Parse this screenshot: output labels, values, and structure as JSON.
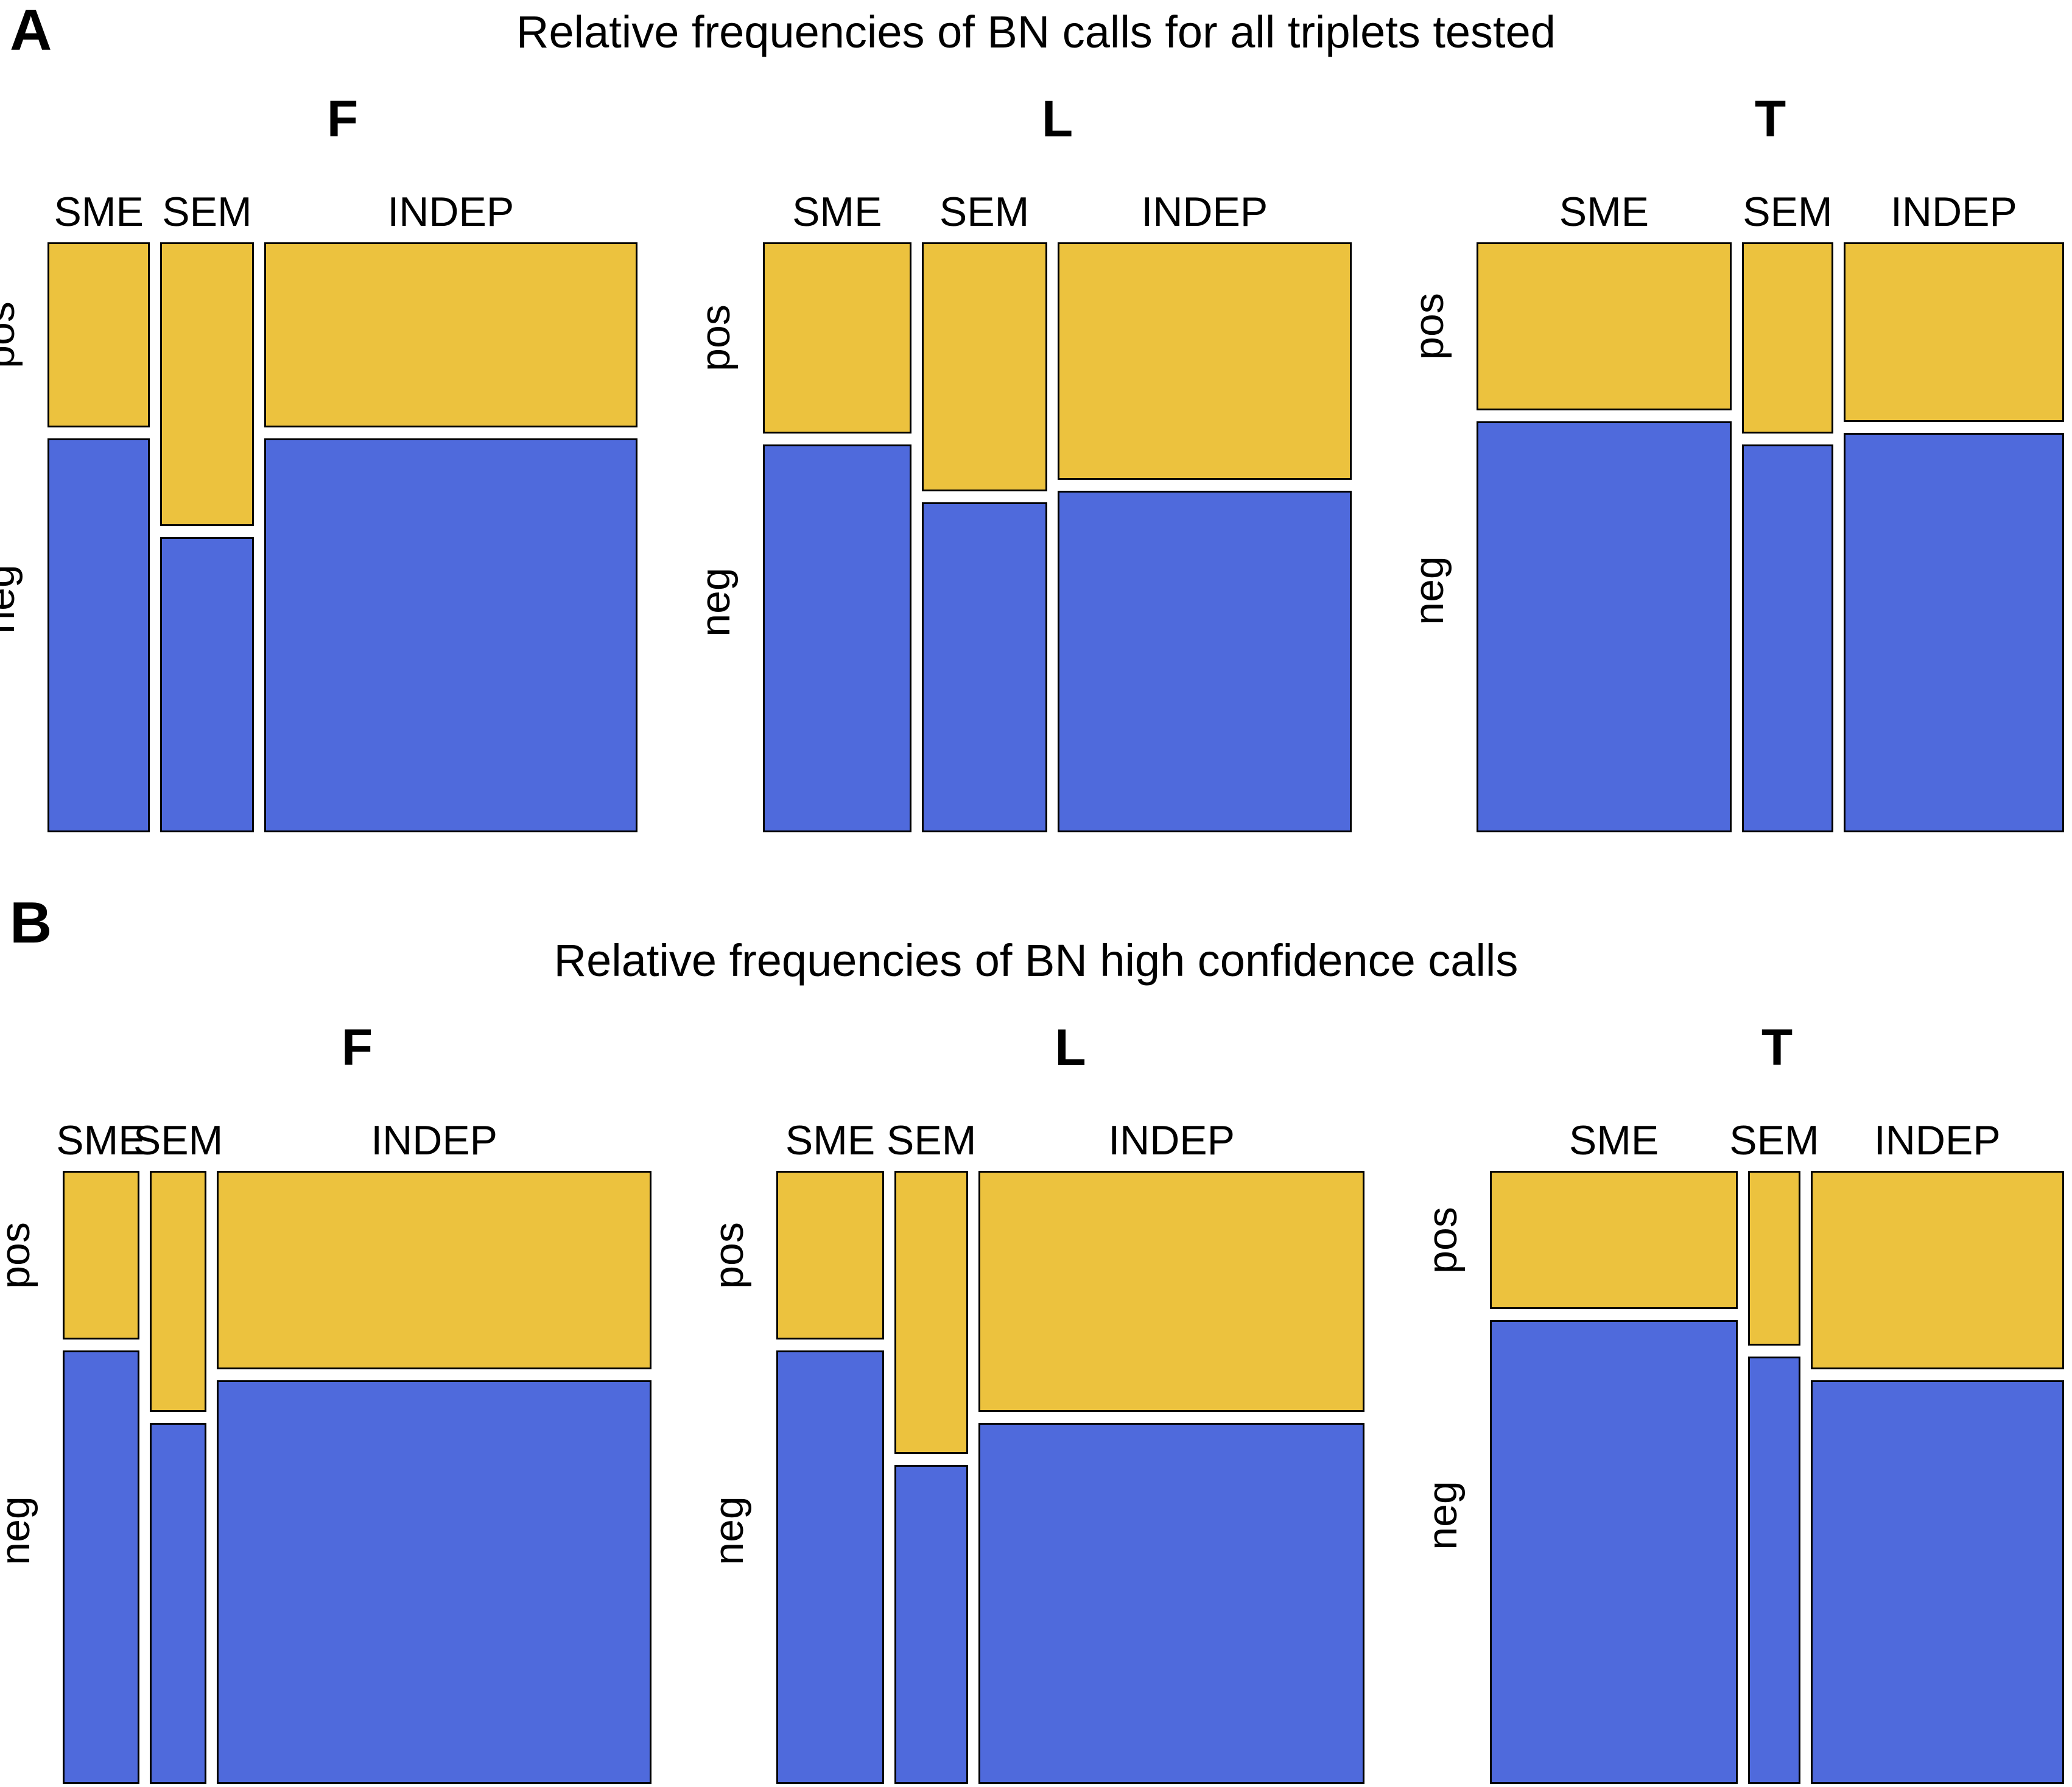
{
  "chart_data": [
    {
      "type": "mosaic",
      "panel_label": "A",
      "title": "Relative frequencies of BN calls for all triplets tested",
      "row_categories": [
        "pos",
        "neg"
      ],
      "col_categories": [
        "SME",
        "SEM",
        "INDEP"
      ],
      "legend_position": "none",
      "grid": false,
      "colors": {
        "pos": "#ECC23E",
        "neg": "#4F6ADC",
        "border": "#000000"
      },
      "plots": [
        {
          "label": "F",
          "col_shares": [
            0.18,
            0.164,
            0.656
          ],
          "pos_share_by_col": [
            0.32,
            0.49,
            0.32
          ],
          "neg_share_by_col": [
            0.68,
            0.51,
            0.68
          ]
        },
        {
          "label": "L",
          "col_shares": [
            0.261,
            0.221,
            0.518
          ],
          "pos_share_by_col": [
            0.33,
            0.43,
            0.41
          ],
          "neg_share_by_col": [
            0.67,
            0.57,
            0.59
          ]
        },
        {
          "label": "T",
          "col_shares": [
            0.45,
            0.161,
            0.389
          ],
          "pos_share_by_col": [
            0.29,
            0.33,
            0.31
          ],
          "neg_share_by_col": [
            0.71,
            0.67,
            0.69
          ]
        }
      ]
    },
    {
      "type": "mosaic",
      "panel_label": "B",
      "title": "Relative frequencies of BN high confidence calls",
      "row_categories": [
        "pos",
        "neg"
      ],
      "col_categories": [
        "SME",
        "SEM",
        "INDEP"
      ],
      "legend_position": "none",
      "grid": false,
      "colors": {
        "pos": "#ECC23E",
        "neg": "#4F6ADC",
        "border": "#000000"
      },
      "plots": [
        {
          "label": "F",
          "col_shares": [
            0.135,
            0.1,
            0.765
          ],
          "pos_share_by_col": [
            0.28,
            0.4,
            0.33
          ],
          "neg_share_by_col": [
            0.72,
            0.6,
            0.67
          ]
        },
        {
          "label": "L",
          "col_shares": [
            0.19,
            0.13,
            0.68
          ],
          "pos_share_by_col": [
            0.28,
            0.47,
            0.4
          ],
          "neg_share_by_col": [
            0.72,
            0.53,
            0.6
          ]
        },
        {
          "label": "T",
          "col_shares": [
            0.448,
            0.094,
            0.458
          ],
          "pos_share_by_col": [
            0.23,
            0.29,
            0.33
          ],
          "neg_share_by_col": [
            0.77,
            0.71,
            0.67
          ]
        }
      ]
    }
  ]
}
